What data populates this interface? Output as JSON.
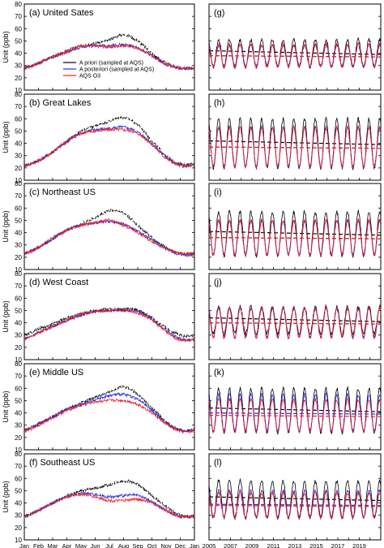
{
  "figure": {
    "y_axis_label": "Unit (ppb)",
    "legend": [
      "A priori (sampled at AQS)",
      "A posteriori (sampled at AQS)",
      "AQS O3"
    ]
  },
  "colors": {
    "apriori": "#000000",
    "aposteriori": "#2a2ad8",
    "aqs": "#e8202a"
  },
  "chart_data": [
    {
      "type": "line",
      "panel": "a",
      "title": "(a) United Sates",
      "x": [
        "Jan",
        "Feb",
        "Mar",
        "Apr",
        "May",
        "Jun",
        "Jul",
        "Aug",
        "Sep",
        "Oct",
        "Nov",
        "Dec",
        "Jan"
      ],
      "ylim": [
        10,
        80
      ],
      "yticks": [
        10,
        20,
        30,
        40,
        50,
        60,
        70,
        80
      ],
      "series": [
        {
          "name": "A priori (sampled at AQS)",
          "values": [
            28,
            32,
            37,
            42,
            46,
            48,
            51,
            55,
            50,
            40,
            32,
            28,
            28
          ]
        },
        {
          "name": "A posteriori (sampled at AQS)",
          "values": [
            28,
            32,
            37,
            41,
            45,
            46,
            46,
            47,
            44,
            38,
            31,
            28,
            28
          ]
        },
        {
          "name": "AQS O3",
          "values": [
            28,
            32,
            37,
            41,
            46,
            46,
            45,
            46,
            44,
            38,
            31,
            28,
            28
          ]
        }
      ],
      "legend_position": "top-right"
    },
    {
      "type": "line",
      "panel": "b",
      "title": "(b) Great Lakes",
      "x": [
        "Jan",
        "Feb",
        "Mar",
        "Apr",
        "May",
        "Jun",
        "Jul",
        "Aug",
        "Sep",
        "Oct",
        "Nov",
        "Dec",
        "Jan"
      ],
      "ylim": [
        10,
        80
      ],
      "yticks": [
        10,
        20,
        30,
        40,
        50,
        60,
        70,
        80
      ],
      "series": [
        {
          "name": "A priori (sampled at AQS)",
          "values": [
            22,
            26,
            33,
            42,
            50,
            54,
            58,
            61,
            55,
            42,
            30,
            23,
            23
          ]
        },
        {
          "name": "A posteriori (sampled at AQS)",
          "values": [
            22,
            26,
            33,
            41,
            48,
            51,
            52,
            53,
            49,
            40,
            29,
            22,
            22
          ]
        },
        {
          "name": "AQS O3",
          "values": [
            22,
            26,
            33,
            42,
            48,
            50,
            51,
            51,
            48,
            39,
            28,
            22,
            22
          ]
        }
      ]
    },
    {
      "type": "line",
      "panel": "c",
      "title": "(c) Northeast US",
      "x": [
        "Jan",
        "Feb",
        "Mar",
        "Apr",
        "May",
        "Jun",
        "Jul",
        "Aug",
        "Sep",
        "Oct",
        "Nov",
        "Dec",
        "Jan"
      ],
      "ylim": [
        10,
        80
      ],
      "yticks": [
        10,
        20,
        30,
        40,
        50,
        60,
        70,
        80
      ],
      "series": [
        {
          "name": "A priori (sampled at AQS)",
          "values": [
            23,
            28,
            35,
            42,
            47,
            52,
            58,
            56,
            46,
            36,
            28,
            23,
            23
          ]
        },
        {
          "name": "A posteriori (sampled at AQS)",
          "values": [
            23,
            28,
            35,
            42,
            46,
            48,
            49,
            47,
            41,
            34,
            27,
            22,
            22
          ]
        },
        {
          "name": "AQS O3",
          "values": [
            23,
            28,
            36,
            42,
            46,
            48,
            50,
            46,
            40,
            33,
            27,
            23,
            23
          ]
        }
      ]
    },
    {
      "type": "line",
      "panel": "d",
      "title": "(d) West Coast",
      "x": [
        "Jan",
        "Feb",
        "Mar",
        "Apr",
        "May",
        "Jun",
        "Jul",
        "Aug",
        "Sep",
        "Oct",
        "Nov",
        "Dec",
        "Jan"
      ],
      "ylim": [
        10,
        80
      ],
      "yticks": [
        10,
        20,
        30,
        40,
        50,
        60,
        70,
        80
      ],
      "series": [
        {
          "name": "A priori (sampled at AQS)",
          "values": [
            30,
            35,
            39,
            44,
            47,
            50,
            51,
            51,
            50,
            44,
            36,
            30,
            29
          ]
        },
        {
          "name": "A posteriori (sampled at AQS)",
          "values": [
            27,
            32,
            37,
            42,
            46,
            49,
            50,
            50,
            49,
            43,
            34,
            27,
            26
          ]
        },
        {
          "name": "AQS O3",
          "values": [
            27,
            32,
            37,
            42,
            47,
            49,
            50,
            50,
            48,
            42,
            33,
            26,
            26
          ]
        }
      ]
    },
    {
      "type": "line",
      "panel": "e",
      "title": "(e) Middle US",
      "x": [
        "Jan",
        "Feb",
        "Mar",
        "Apr",
        "May",
        "Jun",
        "Jul",
        "Aug",
        "Sep",
        "Oct",
        "Nov",
        "Dec",
        "Jan"
      ],
      "ylim": [
        10,
        80
      ],
      "yticks": [
        10,
        20,
        30,
        40,
        50,
        60,
        70,
        80
      ],
      "series": [
        {
          "name": "A priori (sampled at AQS)",
          "values": [
            26,
            31,
            37,
            43,
            48,
            53,
            57,
            61,
            55,
            44,
            33,
            26,
            26
          ]
        },
        {
          "name": "A posteriori (sampled at AQS)",
          "values": [
            26,
            31,
            37,
            43,
            47,
            51,
            54,
            55,
            51,
            42,
            32,
            26,
            26
          ]
        },
        {
          "name": "AQS O3",
          "values": [
            25,
            30,
            36,
            42,
            46,
            49,
            50,
            50,
            47,
            40,
            31,
            25,
            25
          ]
        }
      ]
    },
    {
      "type": "line",
      "panel": "f",
      "title": "(f) Southeast US",
      "x": [
        "Jan",
        "Feb",
        "Mar",
        "Apr",
        "May",
        "Jun",
        "Jul",
        "Aug",
        "Sep",
        "Oct",
        "Nov",
        "Dec",
        "Jan"
      ],
      "ylim": [
        10,
        80
      ],
      "yticks": [
        10,
        20,
        30,
        40,
        50,
        60,
        70,
        80
      ],
      "series": [
        {
          "name": "A priori (sampled at AQS)",
          "values": [
            29,
            34,
            40,
            46,
            50,
            52,
            55,
            58,
            55,
            46,
            37,
            30,
            29
          ]
        },
        {
          "name": "A posteriori (sampled at AQS)",
          "values": [
            29,
            34,
            40,
            45,
            48,
            47,
            45,
            46,
            46,
            41,
            34,
            29,
            29
          ]
        },
        {
          "name": "AQS O3",
          "values": [
            29,
            34,
            40,
            45,
            47,
            45,
            42,
            42,
            43,
            40,
            34,
            29,
            29
          ]
        }
      ]
    },
    {
      "type": "line",
      "panel": "g",
      "title": "(g)",
      "x_ticks": [
        "2005",
        "2007",
        "2009",
        "2011",
        "2013",
        "2015",
        "2017",
        "2019"
      ],
      "xlim": [
        2005,
        2021
      ],
      "ylim": [
        10,
        80
      ],
      "series": [
        {
          "name": "A priori (sampled at AQS)",
          "mean": 40,
          "amplitude": 11
        },
        {
          "name": "A posteriori (sampled at AQS)",
          "mean": 38,
          "amplitude": 9
        },
        {
          "name": "AQS O3",
          "mean": 38,
          "amplitude": 9
        }
      ]
    },
    {
      "type": "line",
      "panel": "h",
      "title": "(h)",
      "x_ticks": [
        "2005",
        "2007",
        "2009",
        "2011",
        "2013",
        "2015",
        "2017",
        "2019"
      ],
      "xlim": [
        2005,
        2021
      ],
      "ylim": [
        10,
        80
      ],
      "series": [
        {
          "name": "A priori (sampled at AQS)",
          "mean": 40,
          "amplitude": 20
        },
        {
          "name": "A posteriori (sampled at AQS)",
          "mean": 37,
          "amplitude": 16
        },
        {
          "name": "AQS O3",
          "mean": 37,
          "amplitude": 16
        }
      ]
    },
    {
      "type": "line",
      "panel": "i",
      "title": "(i)",
      "x_ticks": [
        "2005",
        "2007",
        "2009",
        "2011",
        "2013",
        "2015",
        "2017",
        "2019"
      ],
      "xlim": [
        2005,
        2021
      ],
      "ylim": [
        10,
        80
      ],
      "series": [
        {
          "name": "A priori (sampled at AQS)",
          "mean": 39,
          "amplitude": 18
        },
        {
          "name": "A posteriori (sampled at AQS)",
          "mean": 36,
          "amplitude": 14
        },
        {
          "name": "AQS O3",
          "mean": 36,
          "amplitude": 14
        }
      ]
    },
    {
      "type": "line",
      "panel": "j",
      "title": "(j)",
      "x_ticks": [
        "2005",
        "2007",
        "2009",
        "2011",
        "2013",
        "2015",
        "2017",
        "2019"
      ],
      "xlim": [
        2005,
        2021
      ],
      "ylim": [
        10,
        80
      ],
      "series": [
        {
          "name": "A priori (sampled at AQS)",
          "mean": 42,
          "amplitude": 11
        },
        {
          "name": "A posteriori (sampled at AQS)",
          "mean": 40,
          "amplitude": 12
        },
        {
          "name": "AQS O3",
          "mean": 40,
          "amplitude": 12
        }
      ]
    },
    {
      "type": "line",
      "panel": "k",
      "title": "(k)",
      "x_ticks": [
        "2005",
        "2007",
        "2009",
        "2011",
        "2013",
        "2015",
        "2017",
        "2019"
      ],
      "xlim": [
        2005,
        2021
      ],
      "ylim": [
        10,
        80
      ],
      "series": [
        {
          "name": "A priori (sampled at AQS)",
          "mean": 42,
          "amplitude": 18
        },
        {
          "name": "A posteriori (sampled at AQS)",
          "mean": 40,
          "amplitude": 15
        },
        {
          "name": "AQS O3",
          "mean": 38,
          "amplitude": 13
        }
      ]
    },
    {
      "type": "line",
      "panel": "l",
      "title": "(l)",
      "x_ticks": [
        "2005",
        "2007",
        "2009",
        "2011",
        "2013",
        "2015",
        "2017",
        "2019"
      ],
      "xlim": [
        2005,
        2021
      ],
      "ylim": [
        10,
        80
      ],
      "series": [
        {
          "name": "A priori (sampled at AQS)",
          "mean": 43,
          "amplitude": 15
        },
        {
          "name": "A posteriori (sampled at AQS)",
          "mean": 39,
          "amplitude": 11
        },
        {
          "name": "AQS O3",
          "mean": 38,
          "amplitude": 10
        }
      ]
    }
  ]
}
